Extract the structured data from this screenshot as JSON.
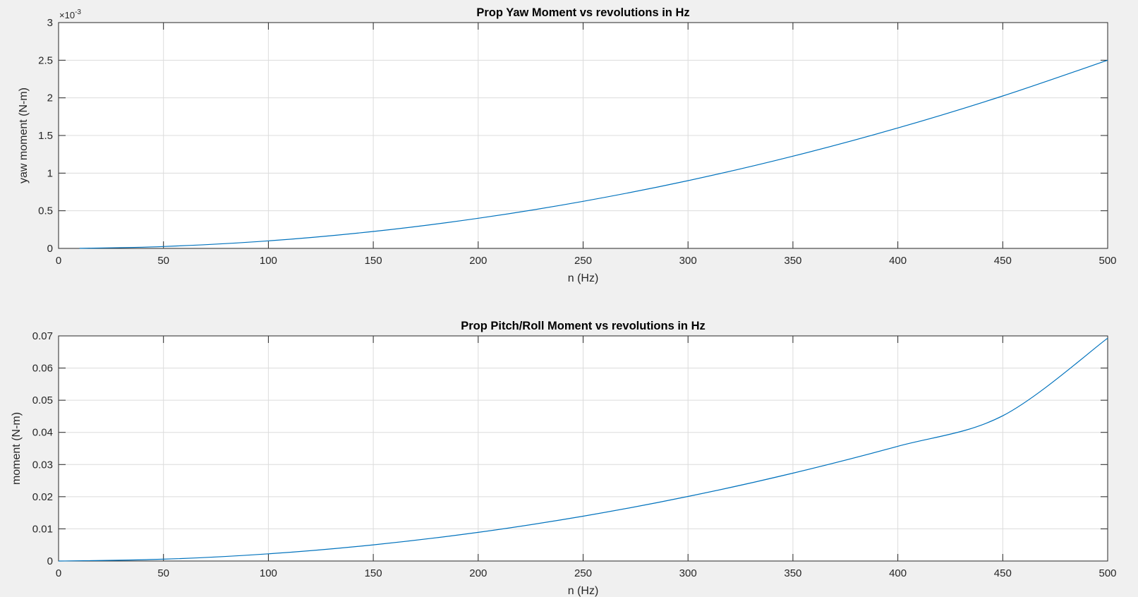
{
  "colors": {
    "series": "#0072bd",
    "axes": "#262626",
    "grid": "#dcdcdc",
    "background": "#f0f0f0"
  },
  "chart_data": [
    {
      "type": "line",
      "title": "Prop Yaw Moment vs revolutions in Hz",
      "xlabel": "n (Hz)",
      "ylabel": "yaw moment (N-m)",
      "xlim": [
        0,
        500
      ],
      "ylim": [
        0,
        0.003
      ],
      "grid": true,
      "y_exponent": {
        "prefix": "×10",
        "power": "-3"
      },
      "x_ticks": [
        0,
        50,
        100,
        150,
        200,
        250,
        300,
        350,
        400,
        450,
        500
      ],
      "x_tick_labels": [
        "0",
        "50",
        "100",
        "150",
        "200",
        "250",
        "300",
        "350",
        "400",
        "450",
        "500"
      ],
      "y_ticks": [
        0,
        0.0005,
        0.001,
        0.0015,
        0.002,
        0.0025,
        0.003
      ],
      "y_tick_labels": [
        "0",
        "0.5",
        "1",
        "1.5",
        "2",
        "2.5",
        "3"
      ],
      "series": [
        {
          "x": [
            10,
            50,
            100,
            150,
            200,
            250,
            300,
            350,
            400,
            450,
            500
          ],
          "y": [
            1e-06,
            2.5e-05,
            0.0001,
            0.000225,
            0.0004,
            0.000625,
            0.0009,
            0.001225,
            0.0016,
            0.002025,
            0.0025
          ]
        }
      ]
    },
    {
      "type": "line",
      "title": "Prop Pitch/Roll Moment vs revolutions in Hz",
      "xlabel": "n (Hz)",
      "ylabel": "moment (N-m)",
      "xlim": [
        0,
        500
      ],
      "ylim": [
        0,
        0.07
      ],
      "grid": true,
      "x_ticks": [
        0,
        50,
        100,
        150,
        200,
        250,
        300,
        350,
        400,
        450,
        500
      ],
      "x_tick_labels": [
        "0",
        "50",
        "100",
        "150",
        "200",
        "250",
        "300",
        "350",
        "400",
        "450",
        "500"
      ],
      "y_ticks": [
        0,
        0.01,
        0.02,
        0.03,
        0.04,
        0.05,
        0.06,
        0.07
      ],
      "y_tick_labels": [
        "0",
        "0.01",
        "0.02",
        "0.03",
        "0.04",
        "0.05",
        "0.06",
        "0.07"
      ],
      "series": [
        {
          "x": [
            0,
            50,
            100,
            150,
            200,
            250,
            300,
            350,
            400,
            450,
            500
          ],
          "y": [
            0,
            0.00056,
            0.00223,
            0.00502,
            0.00892,
            0.01394,
            0.02007,
            0.02732,
            0.03568,
            0.04516,
            0.0693
          ]
        }
      ]
    }
  ]
}
